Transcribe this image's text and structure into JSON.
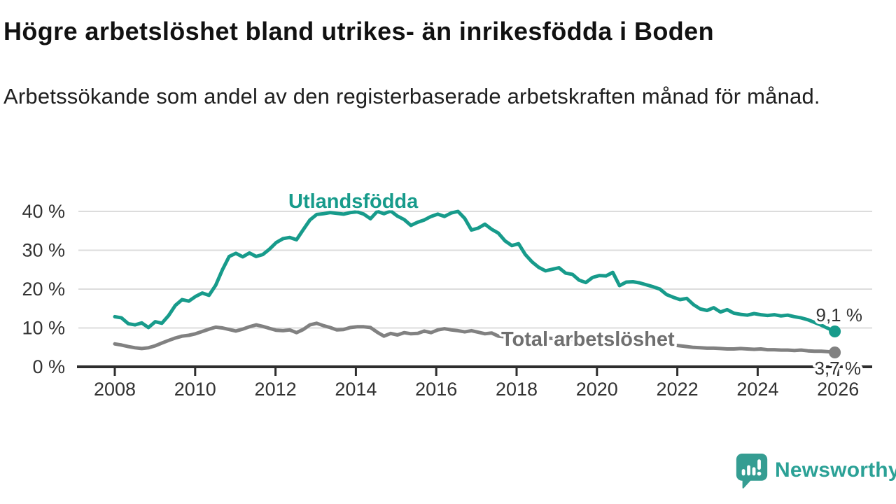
{
  "chart_data": {
    "type": "line",
    "title": "Högre arbetslöshet bland utrikes- än inrikesfödda i Boden",
    "subtitle": "Arbetssökande som andel av den registerbaserade arbetskraften månad för månad.",
    "x_axis": {
      "tick_values": [
        2008,
        2010,
        2012,
        2014,
        2016,
        2018,
        2020,
        2022,
        2024,
        2026
      ],
      "tick_labels": [
        "2008",
        "2010",
        "2012",
        "2014",
        "2016",
        "2018",
        "2020",
        "2022",
        "2024",
        "2026"
      ],
      "min": 2008,
      "max": 2026
    },
    "y_axis": {
      "tick_values": [
        0,
        10,
        20,
        30,
        40
      ],
      "tick_labels": [
        "0 %",
        "10 %",
        "20 %",
        "30 %",
        "40 %"
      ],
      "min": 0,
      "max": 42,
      "grid": true
    },
    "grid_color": "#dcdcdc",
    "axis_color": "#2e2e2e",
    "tick_label_color": "#333333",
    "end_label_color": "#333333",
    "series": [
      {
        "name": "Utlandsfödda",
        "color": "#179b8b",
        "label_color": "#179b8b",
        "end_label": "9,1 %",
        "end_value": 9.1,
        "x_start": 2008.0,
        "x_end": 2025.92,
        "values": [
          12.9,
          12.6,
          11.1,
          10.8,
          11.3,
          10.1,
          11.6,
          11.2,
          13.2,
          15.8,
          17.3,
          16.9,
          18.1,
          19.0,
          18.4,
          21.0,
          25.0,
          28.4,
          29.2,
          28.3,
          29.3,
          28.4,
          28.9,
          30.3,
          32.0,
          33.0,
          33.3,
          32.7,
          35.3,
          37.8,
          39.2,
          39.4,
          39.7,
          39.5,
          39.3,
          39.7,
          39.9,
          39.3,
          38.1,
          40.0,
          39.4,
          40.1,
          38.8,
          37.9,
          36.4,
          37.2,
          37.8,
          38.7,
          39.3,
          38.7,
          39.6,
          40.0,
          38.2,
          35.2,
          35.7,
          36.7,
          35.4,
          34.4,
          32.4,
          31.2,
          31.7,
          28.9,
          27.0,
          25.6,
          24.7,
          25.1,
          25.5,
          24.1,
          23.8,
          22.3,
          21.7,
          23.0,
          23.5,
          23.4,
          24.3,
          20.9,
          21.8,
          21.9,
          21.6,
          21.1,
          20.6,
          20.0,
          18.6,
          17.9,
          17.3,
          17.6,
          16.0,
          14.9,
          14.5,
          15.2,
          14.1,
          14.7,
          13.8,
          13.5,
          13.3,
          13.7,
          13.4,
          13.2,
          13.4,
          13.1,
          13.3,
          12.9,
          12.6,
          12.1,
          11.4,
          10.7,
          9.9,
          9.1
        ]
      },
      {
        "name": "Total arbetslöshet",
        "color": "#818181",
        "label_color": "#6f6f6f",
        "end_label": "3,7 %",
        "end_value": 3.7,
        "x_start": 2008.0,
        "x_end": 2025.92,
        "values": [
          5.9,
          5.6,
          5.2,
          4.9,
          4.7,
          4.9,
          5.4,
          6.1,
          6.8,
          7.4,
          7.9,
          8.1,
          8.5,
          9.1,
          9.7,
          10.2,
          10.0,
          9.6,
          9.2,
          9.7,
          10.3,
          10.8,
          10.4,
          9.9,
          9.4,
          9.3,
          9.5,
          8.8,
          9.6,
          10.8,
          11.2,
          10.6,
          10.1,
          9.5,
          9.6,
          10.1,
          10.3,
          10.3,
          10.1,
          8.9,
          7.9,
          8.6,
          8.2,
          8.8,
          8.5,
          8.6,
          9.2,
          8.8,
          9.5,
          9.8,
          9.5,
          9.3,
          9.0,
          9.3,
          8.9,
          8.5,
          8.7,
          7.9,
          7.7,
          7.8,
          7.7,
          7.6,
          7.5,
          7.5,
          7.4,
          7.3,
          7.2,
          7.1,
          7.0,
          7.0,
          6.9,
          7.0,
          7.2,
          7.4,
          7.5,
          7.4,
          7.2,
          7.0,
          6.8,
          6.5,
          6.3,
          6.1,
          5.9,
          5.6,
          5.4,
          5.2,
          5.0,
          4.9,
          4.8,
          4.8,
          4.7,
          4.6,
          4.6,
          4.7,
          4.6,
          4.5,
          4.6,
          4.4,
          4.4,
          4.3,
          4.3,
          4.2,
          4.3,
          4.1,
          4.0,
          4.0,
          3.9,
          3.7
        ]
      }
    ],
    "legend_position": "inline-labels"
  },
  "branding": {
    "name": "Newsworthy",
    "icon": "newsworthy-logo-icon",
    "text_color": "#2ba196",
    "icon_color": "#359d92"
  }
}
